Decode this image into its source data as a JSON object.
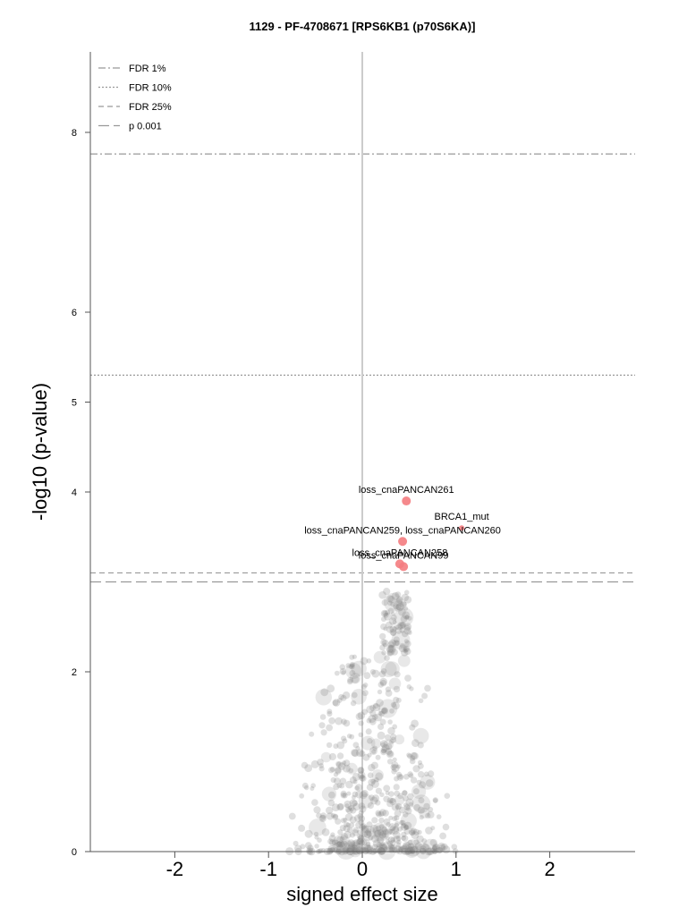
{
  "chart_data": {
    "type": "scatter",
    "title": "1129 - PF-4708671 [RPS6KB1 (p70S6KA)]",
    "xlabel": "signed effect size",
    "ylabel": "-log10 (p-value)",
    "xlim": [
      -2.9,
      2.9
    ],
    "ylim": [
      0,
      8.9
    ],
    "x_ticks": [
      "-2",
      "-1",
      "0",
      "1",
      "2"
    ],
    "y_ticks": [
      "0",
      "2",
      "4",
      "5",
      "6",
      "8"
    ],
    "legend": {
      "placement": "top-left",
      "entries": [
        {
          "label": "FDR 1%",
          "style": "dashdot"
        },
        {
          "label": "FDR 10%",
          "style": "dotted"
        },
        {
          "label": "FDR 25%",
          "style": "dashed"
        },
        {
          "label": "p 0.001",
          "style": "longdash"
        }
      ]
    },
    "thresholds": [
      {
        "name": "FDR 1%",
        "y": 7.76,
        "style": "dashdot"
      },
      {
        "name": "FDR 10%",
        "y": 5.3,
        "style": "dotted"
      },
      {
        "name": "FDR 25%",
        "y": 3.1,
        "style": "dashed"
      },
      {
        "name": "p 0.001",
        "y": 3.0,
        "style": "longdash"
      }
    ],
    "significant_points": [
      {
        "label": "loss_cnaPANCAN261",
        "x": 0.47,
        "y": 3.9
      },
      {
        "label": "BRCA1_mut",
        "x": 1.06,
        "y": 3.6
      },
      {
        "label": "loss_cnaPANCAN259, loss_cnaPANCAN260",
        "x": 0.43,
        "y": 3.45
      },
      {
        "label": "loss_cnaPANCAN258",
        "x": 0.4,
        "y": 3.2
      },
      {
        "label": "loss_cnaPANCAN99",
        "x": 0.44,
        "y": 3.17
      }
    ],
    "background_points_seed": 1129,
    "background_points_count": 700,
    "colors": {
      "significant": "#f47c80",
      "background": "#808080",
      "axis": "#555555",
      "threshold": "#999999",
      "zero_line": "#cccccc"
    }
  }
}
